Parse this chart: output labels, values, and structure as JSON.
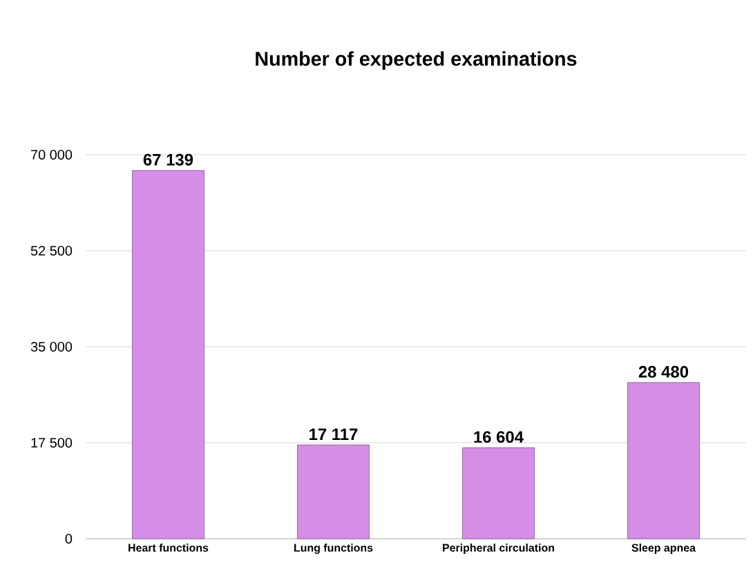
{
  "chart_data": {
    "type": "bar",
    "title": "Number of expected examinations",
    "categories": [
      "Heart functions",
      "Lung functions",
      "Peripheral circulation",
      "Sleep apnea"
    ],
    "values": [
      67139,
      17117,
      16604,
      28480
    ],
    "value_labels": [
      "67 139",
      "17 117",
      "16 604",
      "28 480"
    ],
    "color": "#d58ee6",
    "ylim": [
      0,
      70000
    ],
    "yticks": [
      0,
      {
        "value": 17500,
        "label": "17 500"
      },
      {
        "value": 35000,
        "label": "35 000"
      },
      {
        "value": 52500,
        "label": "52 500"
      },
      {
        "value": 70000,
        "label": "70 000"
      }
    ],
    "grid": "y"
  }
}
